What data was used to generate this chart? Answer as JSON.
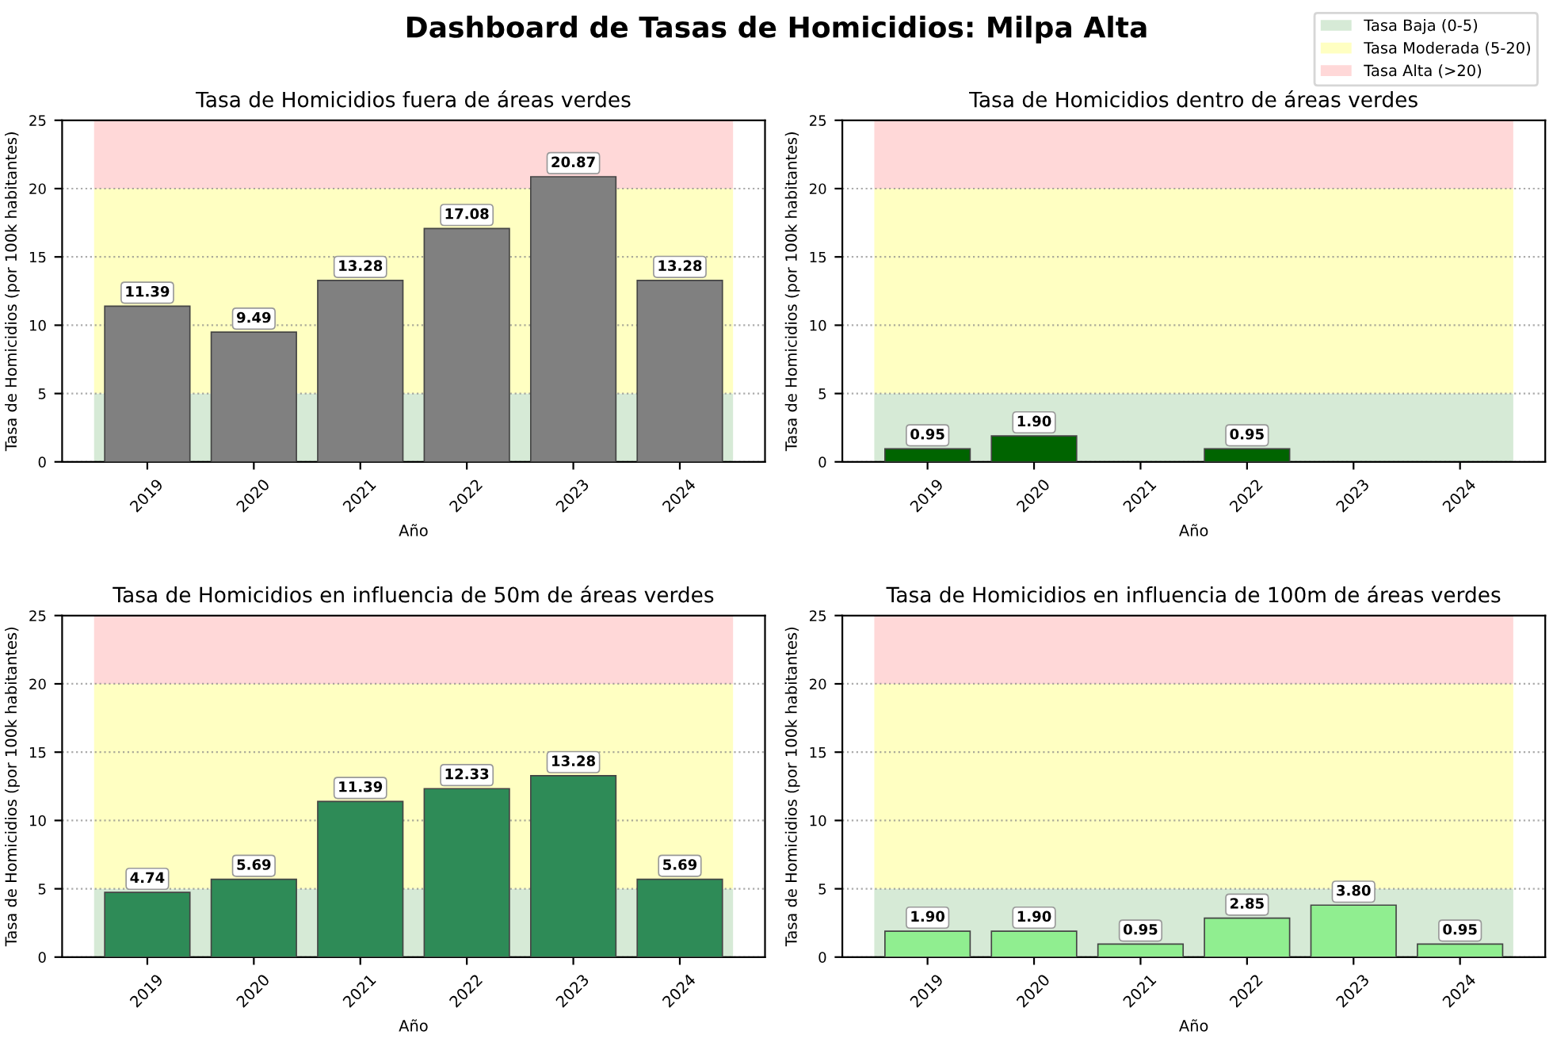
{
  "chart_data": [
    {
      "type": "bar",
      "title": "Tasa de Homicidios fuera de áreas verdes",
      "xlabel": "Año",
      "ylabel": "Tasa de Homicidios (por 100k habitantes)",
      "annotations": [
        "Dashboard de Tasas de Homicidios: Milpa Alta"
      ],
      "categories": [
        "2019",
        "2020",
        "2021",
        "2022",
        "2023",
        "2024"
      ],
      "values": [
        11.39,
        9.49,
        13.28,
        17.08,
        20.87,
        13.28
      ],
      "color": "#808080",
      "data_labels": true,
      "ylim": [
        0,
        25
      ],
      "yticks": [
        0,
        5,
        10,
        15,
        20,
        25
      ],
      "grid": "y",
      "legend": "top right",
      "bands": [
        {
          "axis": "y",
          "from": 0,
          "to": 5,
          "label": "Tasa Baja (0-5)",
          "color": "#d6ead6"
        },
        {
          "axis": "y",
          "from": 5,
          "to": 20,
          "label": "Tasa Moderada (5-20)",
          "color": "#ffffc2"
        },
        {
          "axis": "y",
          "from": 20,
          "to": 25,
          "label": "Tasa Alta (>20)",
          "color": "#ffd8d8"
        }
      ]
    },
    {
      "type": "bar",
      "title": "Tasa de Homicidios dentro de áreas verdes",
      "xlabel": "Año",
      "ylabel": "Tasa de Homicidios (por 100k habitantes)",
      "categories": [
        "2019",
        "2020",
        "2021",
        "2022",
        "2023",
        "2024"
      ],
      "values": [
        0.95,
        1.9,
        null,
        0.95,
        null,
        null
      ],
      "value_labels": [
        "0.95",
        "1.90",
        null,
        "0.95",
        null,
        null
      ],
      "color": "#006400",
      "ylim": [
        0,
        25
      ],
      "yticks": [
        0,
        5,
        10,
        15,
        20,
        25
      ],
      "grid": "y",
      "bands": [
        {
          "axis": "y",
          "from": 0,
          "to": 5,
          "color": "#d6ead6"
        },
        {
          "axis": "y",
          "from": 5,
          "to": 20,
          "color": "#ffffc2"
        },
        {
          "axis": "y",
          "from": 20,
          "to": 25,
          "color": "#ffd8d8"
        }
      ]
    },
    {
      "type": "bar",
      "title": "Tasa de Homicidios en influencia de 50m de áreas verdes",
      "xlabel": "Año",
      "ylabel": "Tasa de Homicidios (por 100k habitantes)",
      "categories": [
        "2019",
        "2020",
        "2021",
        "2022",
        "2023",
        "2024"
      ],
      "values": [
        4.74,
        5.69,
        11.39,
        12.33,
        13.28,
        5.69
      ],
      "color": "#2e8b57",
      "data_labels": true,
      "ylim": [
        0,
        25
      ],
      "yticks": [
        0,
        5,
        10,
        15,
        20,
        25
      ],
      "grid": "y",
      "bands": [
        {
          "axis": "y",
          "from": 0,
          "to": 5,
          "color": "#d6ead6"
        },
        {
          "axis": "y",
          "from": 5,
          "to": 20,
          "color": "#ffffc2"
        },
        {
          "axis": "y",
          "from": 20,
          "to": 25,
          "color": "#ffd8d8"
        }
      ]
    },
    {
      "type": "bar",
      "title": "Tasa de Homicidios en influencia de 100m de áreas verdes",
      "xlabel": "Año",
      "ylabel": "Tasa de Homicidios (por 100k habitantes)",
      "categories": [
        "2019",
        "2020",
        "2021",
        "2022",
        "2023",
        "2024"
      ],
      "values": [
        1.9,
        1.9,
        0.95,
        2.85,
        3.8,
        0.95
      ],
      "value_labels": [
        "1.90",
        "1.90",
        "0.95",
        "2.85",
        "3.80",
        "0.95"
      ],
      "color": "#90ee90",
      "ylim": [
        0,
        25
      ],
      "yticks": [
        0,
        5,
        10,
        15,
        20,
        25
      ],
      "grid": "y",
      "bands": [
        {
          "axis": "y",
          "from": 0,
          "to": 5,
          "color": "#d6ead6"
        },
        {
          "axis": "y",
          "from": 5,
          "to": 20,
          "color": "#ffffc2"
        },
        {
          "axis": "y",
          "from": 20,
          "to": 25,
          "color": "#ffd8d8"
        }
      ]
    }
  ]
}
